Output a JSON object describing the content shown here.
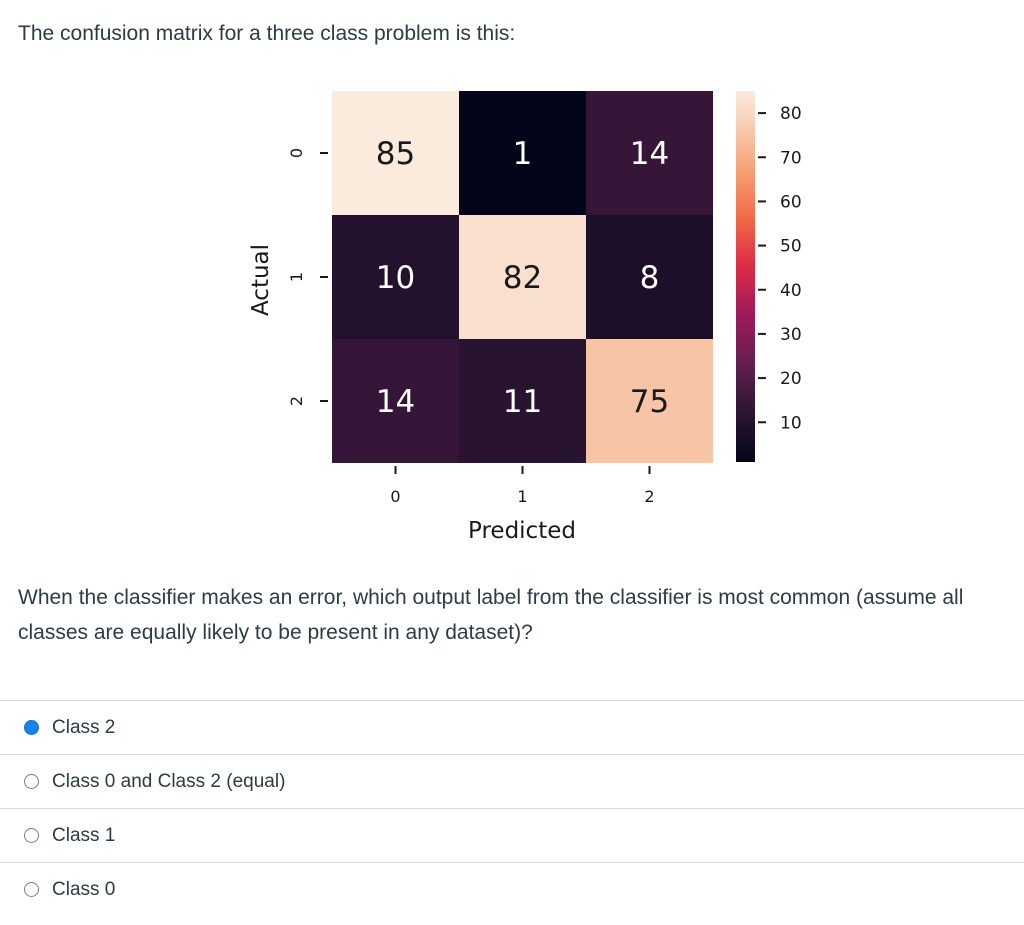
{
  "intro_text": "The confusion matrix for a three class problem is this:",
  "chart_data": {
    "type": "heatmap",
    "xlabel": "Predicted",
    "ylabel": "Actual",
    "x_categories": [
      "0",
      "1",
      "2"
    ],
    "y_categories": [
      "0",
      "1",
      "2"
    ],
    "matrix": [
      [
        85,
        1,
        14
      ],
      [
        10,
        82,
        8
      ],
      [
        14,
        11,
        75
      ]
    ],
    "colorbar": {
      "min": 1,
      "max": 85,
      "ticks": [
        80,
        70,
        60,
        50,
        40,
        30,
        20,
        10
      ]
    },
    "colormap": "rocket"
  },
  "question_text": "When the classifier makes an error, which output label from the classifier is most common (assume all classes are equally likely to be present in any dataset)?",
  "answers": [
    {
      "label": "Class 2",
      "selected": true
    },
    {
      "label": "Class 0 and Class 2 (equal)",
      "selected": false
    },
    {
      "label": "Class 1",
      "selected": false
    },
    {
      "label": "Class 0",
      "selected": false
    }
  ]
}
